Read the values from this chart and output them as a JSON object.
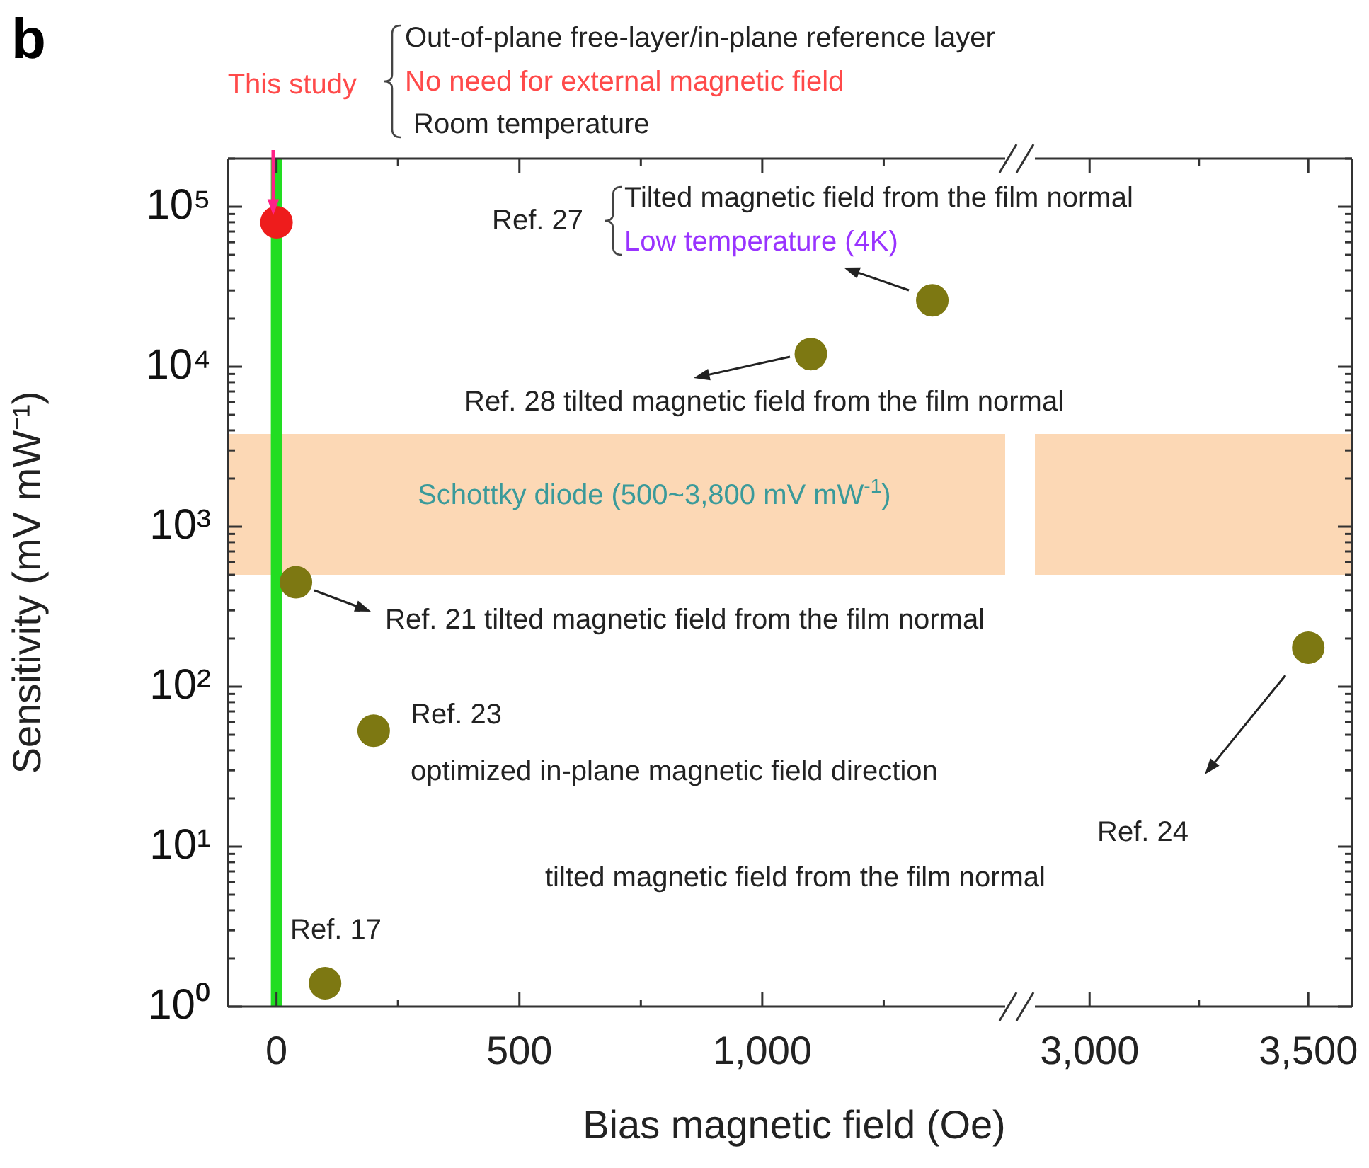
{
  "chart_data": [
    {
      "type": "scatter",
      "title": "b",
      "xlabel": "Bias magnetic field (Oe)",
      "ylabel": "Sensitivity (mV mW⁻¹)",
      "log": "y",
      "marker": "circle",
      "xlim": [
        -100,
        1500
      ],
      "xticks": [
        0,
        {
          "value": 250,
          "label": null
        },
        500,
        {
          "value": 750,
          "label": null
        },
        {
          "value": 1000,
          "label": "1,000"
        },
        {
          "value": 1250,
          "label": null
        }
      ],
      "ylim": [
        1,
        200000
      ],
      "yticks": [
        {
          "value": 1,
          "label": "10⁰"
        },
        {
          "value": 2,
          "label": null
        },
        {
          "value": 3,
          "label": null
        },
        {
          "value": 4,
          "label": null
        },
        {
          "value": 5,
          "label": null
        },
        {
          "value": 6,
          "label": null
        },
        {
          "value": 7,
          "label": null
        },
        {
          "value": 8,
          "label": null
        },
        {
          "value": 9,
          "label": null
        },
        {
          "value": 10,
          "label": "10¹"
        },
        {
          "value": 20,
          "label": null
        },
        {
          "value": 30,
          "label": null
        },
        {
          "value": 40,
          "label": null
        },
        {
          "value": 50,
          "label": null
        },
        {
          "value": 60,
          "label": null
        },
        {
          "value": 70,
          "label": null
        },
        {
          "value": 80,
          "label": null
        },
        {
          "value": 90,
          "label": null
        },
        {
          "value": 100,
          "label": "10²"
        },
        {
          "value": 200,
          "label": null
        },
        {
          "value": 300,
          "label": null
        },
        {
          "value": 400,
          "label": null
        },
        {
          "value": 500,
          "label": null
        },
        {
          "value": 600,
          "label": null
        },
        {
          "value": 700,
          "label": null
        },
        {
          "value": 800,
          "label": null
        },
        {
          "value": 900,
          "label": null
        },
        {
          "value": 1000,
          "label": "10³"
        },
        {
          "value": 2000,
          "label": null
        },
        {
          "value": 3000,
          "label": null
        },
        {
          "value": 4000,
          "label": null
        },
        {
          "value": 5000,
          "label": null
        },
        {
          "value": 6000,
          "label": null
        },
        {
          "value": 7000,
          "label": null
        },
        {
          "value": 8000,
          "label": null
        },
        {
          "value": 9000,
          "label": null
        },
        {
          "value": 10000,
          "label": "10⁴"
        },
        {
          "value": 20000,
          "label": null
        },
        {
          "value": 30000,
          "label": null
        },
        {
          "value": 40000,
          "label": null
        },
        {
          "value": 50000,
          "label": null
        },
        {
          "value": 60000,
          "label": null
        },
        {
          "value": 70000,
          "label": null
        },
        {
          "value": 80000,
          "label": null
        },
        {
          "value": 90000,
          "label": null
        },
        {
          "value": 100000,
          "label": "10⁵"
        },
        {
          "value": 200000,
          "label": null
        }
      ],
      "series": [
        {
          "color": "#ee1c1c",
          "x": [
            0
          ],
          "values": [
            80000
          ]
        },
        {
          "color": "#7d7812",
          "x": [
            40,
            100,
            200,
            1100,
            1350
          ],
          "values": [
            450,
            1.4,
            53,
            12000,
            26000
          ]
        }
      ],
      "ref_lines": [
        {
          "axis": "x",
          "value": 0,
          "color": "#22dd22"
        }
      ],
      "bands": [
        {
          "axis": "y",
          "from": 500,
          "to": 3800,
          "color": "#fcd8b5"
        }
      ],
      "annotations": [
        "This study",
        "Out-of-plane free-layer/in-plane reference layer",
        "No need for external magnetic field",
        "Room temperature",
        "Ref. 27",
        "Tilted magnetic field from the film normal",
        "Low temperature (4K)",
        "Ref. 28 tilted magnetic field from the film normal",
        "Schottky diode (500~3,800 mV mW$^{-1}$)",
        "Ref. 21 tilted magnetic field from the film normal",
        "Ref. 23",
        "optimized in-plane magnetic field direction",
        "Ref. 24",
        "tilted magnetic field from the film normal",
        "Ref. 17"
      ]
    },
    {
      "type": "scatter",
      "log": "y",
      "marker": "circle",
      "tick_labels": "x",
      "xlim": [
        2875,
        3600
      ],
      "xticks": [
        {
          "value": 3000,
          "label": "3,000"
        },
        {
          "value": 3250,
          "label": null
        },
        {
          "value": 3500,
          "label": "3,500"
        }
      ],
      "ylim": [
        1,
        200000
      ],
      "yticks": [
        {
          "value": 1,
          "label": null
        },
        {
          "value": 2,
          "label": null
        },
        {
          "value": 3,
          "label": null
        },
        {
          "value": 4,
          "label": null
        },
        {
          "value": 5,
          "label": null
        },
        {
          "value": 6,
          "label": null
        },
        {
          "value": 7,
          "label": null
        },
        {
          "value": 8,
          "label": null
        },
        {
          "value": 9,
          "label": null
        },
        {
          "value": 10,
          "label": null
        },
        {
          "value": 20,
          "label": null
        },
        {
          "value": 30,
          "label": null
        },
        {
          "value": 40,
          "label": null
        },
        {
          "value": 50,
          "label": null
        },
        {
          "value": 60,
          "label": null
        },
        {
          "value": 70,
          "label": null
        },
        {
          "value": 80,
          "label": null
        },
        {
          "value": 90,
          "label": null
        },
        {
          "value": 100,
          "label": null
        },
        {
          "value": 200,
          "label": null
        },
        {
          "value": 300,
          "label": null
        },
        {
          "value": 400,
          "label": null
        },
        {
          "value": 500,
          "label": null
        },
        {
          "value": 600,
          "label": null
        },
        {
          "value": 700,
          "label": null
        },
        {
          "value": 800,
          "label": null
        },
        {
          "value": 900,
          "label": null
        },
        {
          "value": 1000,
          "label": null
        },
        {
          "value": 2000,
          "label": null
        },
        {
          "value": 3000,
          "label": null
        },
        {
          "value": 4000,
          "label": null
        },
        {
          "value": 5000,
          "label": null
        },
        {
          "value": 6000,
          "label": null
        },
        {
          "value": 7000,
          "label": null
        },
        {
          "value": 8000,
          "label": null
        },
        {
          "value": 9000,
          "label": null
        },
        {
          "value": 10000,
          "label": null
        },
        {
          "value": 20000,
          "label": null
        },
        {
          "value": 30000,
          "label": null
        },
        {
          "value": 40000,
          "label": null
        },
        {
          "value": 50000,
          "label": null
        },
        {
          "value": 60000,
          "label": null
        },
        {
          "value": 70000,
          "label": null
        },
        {
          "value": 80000,
          "label": null
        },
        {
          "value": 90000,
          "label": null
        },
        {
          "value": 100000,
          "label": null
        },
        {
          "value": 200000,
          "label": null
        }
      ],
      "series": [
        {
          "color": "#7d7812",
          "x": [
            3500
          ],
          "values": [
            175
          ]
        }
      ],
      "bands": [
        {
          "axis": "y",
          "from": 500,
          "to": 3800,
          "color": "#fcd8b5"
        }
      ]
    }
  ]
}
